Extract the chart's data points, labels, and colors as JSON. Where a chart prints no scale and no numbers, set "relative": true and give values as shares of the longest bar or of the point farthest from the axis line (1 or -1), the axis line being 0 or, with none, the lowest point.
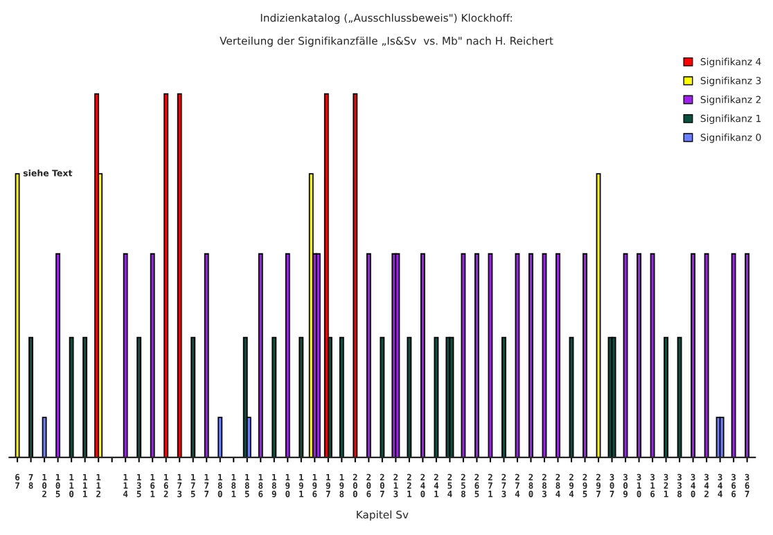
{
  "chart_data": {
    "type": "bar",
    "relative": true,
    "title": "Indizienkatalog („Ausschlussbeweis\") Klockhoff:",
    "subtitle": "Verteilung der Signifikanzfälle „Is&Sv  vs. Mb\" nach H. Reichert",
    "xlabel": "Kapitel Sv",
    "categories": [
      "67",
      "78",
      "102",
      "105",
      "110",
      "111",
      "112",
      null,
      "114",
      "135",
      "161",
      "162",
      "173",
      "175",
      "177",
      "180",
      "181",
      "185",
      "186",
      "189",
      "190",
      "191",
      "196",
      "197",
      "198",
      "200",
      "206",
      "207",
      "213",
      "221",
      "240",
      "241",
      "254",
      "258",
      "265",
      "271",
      "273",
      "274",
      "280",
      "283",
      "284",
      "294",
      "295",
      "297",
      "307",
      "309",
      "310",
      "316",
      "321",
      "338",
      "340",
      "342",
      "344",
      "366",
      "367"
    ],
    "series": [
      {
        "name": "Signifikanz 4",
        "color": "#ff0000",
        "values": [
          null,
          null,
          null,
          null,
          null,
          null,
          1,
          null,
          null,
          null,
          null,
          1,
          1,
          null,
          null,
          null,
          null,
          null,
          null,
          null,
          null,
          null,
          null,
          1,
          null,
          1,
          null,
          null,
          null,
          null,
          null,
          null,
          null,
          null,
          null,
          null,
          null,
          null,
          null,
          null,
          null,
          null,
          null,
          null,
          null,
          null,
          null,
          null,
          null,
          null,
          null,
          null,
          null,
          null,
          null
        ]
      },
      {
        "name": "Signifikanz 3",
        "color": "#ffff00",
        "values": [
          0.78,
          null,
          null,
          null,
          null,
          null,
          0.78,
          null,
          null,
          null,
          null,
          null,
          null,
          null,
          null,
          null,
          null,
          null,
          null,
          null,
          null,
          null,
          0.78,
          null,
          null,
          null,
          null,
          null,
          null,
          null,
          null,
          null,
          null,
          null,
          null,
          null,
          null,
          null,
          null,
          null,
          null,
          null,
          null,
          0.78,
          null,
          null,
          null,
          null,
          null,
          null,
          null,
          null,
          null,
          null,
          null
        ]
      },
      {
        "name": "Signifikanz 2",
        "color": "#a020f0",
        "values": [
          null,
          null,
          null,
          0.56,
          null,
          null,
          null,
          null,
          0.56,
          null,
          0.56,
          null,
          null,
          null,
          0.56,
          null,
          null,
          null,
          0.56,
          null,
          0.56,
          null,
          0.56,
          null,
          null,
          null,
          0.56,
          null,
          0.56,
          null,
          0.56,
          null,
          null,
          0.56,
          0.56,
          0.56,
          null,
          0.56,
          0.56,
          0.56,
          0.56,
          null,
          0.56,
          null,
          null,
          0.56,
          0.56,
          0.56,
          null,
          null,
          0.56,
          0.56,
          null,
          0.56,
          0.56
        ]
      },
      {
        "name": "Signifikanz 1",
        "color": "#0b4f40",
        "values": [
          null,
          0.33,
          null,
          null,
          0.33,
          0.33,
          null,
          null,
          null,
          0.33,
          null,
          null,
          null,
          0.33,
          null,
          null,
          null,
          0.33,
          null,
          0.33,
          null,
          0.33,
          null,
          0.33,
          0.33,
          null,
          null,
          0.33,
          null,
          0.33,
          null,
          0.33,
          0.33,
          null,
          null,
          null,
          0.33,
          null,
          null,
          null,
          null,
          0.33,
          null,
          null,
          0.33,
          null,
          null,
          null,
          0.33,
          0.33,
          null,
          null,
          null,
          null,
          null
        ]
      },
      {
        "name": "Signifikanz 0",
        "color": "#6b80ff",
        "values": [
          null,
          null,
          0.11,
          null,
          null,
          null,
          null,
          null,
          null,
          null,
          null,
          null,
          null,
          null,
          null,
          0.11,
          null,
          0.11,
          null,
          null,
          null,
          null,
          null,
          null,
          null,
          null,
          null,
          null,
          null,
          null,
          null,
          null,
          null,
          null,
          null,
          null,
          null,
          null,
          null,
          null,
          null,
          null,
          null,
          null,
          null,
          null,
          null,
          null,
          null,
          null,
          null,
          null,
          0.11,
          null,
          null
        ]
      },
      {
        "color": "#a020f0",
        "values": [
          null,
          null,
          null,
          null,
          null,
          null,
          null,
          null,
          null,
          null,
          null,
          null,
          null,
          null,
          null,
          null,
          null,
          null,
          null,
          null,
          null,
          null,
          0.56,
          null,
          null,
          null,
          null,
          null,
          0.56,
          null,
          null,
          null,
          null,
          null,
          null,
          null,
          null,
          null,
          null,
          null,
          null,
          null,
          null,
          null,
          null,
          null,
          null,
          null,
          null,
          null,
          null,
          null,
          null,
          null,
          null
        ]
      },
      {
        "color": "#0b4f40",
        "values": [
          null,
          null,
          null,
          null,
          null,
          null,
          null,
          null,
          null,
          null,
          null,
          null,
          null,
          null,
          null,
          null,
          null,
          null,
          null,
          null,
          null,
          null,
          null,
          null,
          null,
          null,
          null,
          null,
          null,
          null,
          null,
          null,
          0.33,
          null,
          null,
          null,
          null,
          null,
          null,
          null,
          null,
          null,
          null,
          null,
          0.33,
          null,
          null,
          null,
          null,
          null,
          null,
          null,
          null,
          null,
          null
        ]
      },
      {
        "color": "#6b80ff",
        "values": [
          null,
          null,
          null,
          null,
          null,
          null,
          null,
          null,
          null,
          null,
          null,
          null,
          null,
          null,
          null,
          null,
          null,
          null,
          null,
          null,
          null,
          null,
          null,
          null,
          null,
          null,
          null,
          null,
          null,
          null,
          null,
          null,
          null,
          null,
          null,
          null,
          null,
          null,
          null,
          null,
          null,
          null,
          null,
          null,
          null,
          null,
          null,
          null,
          null,
          null,
          null,
          null,
          0.11,
          null,
          null
        ]
      }
    ],
    "annotations": [
      {
        "text": "siehe Text",
        "x": "67",
        "y": 0.78
      }
    ],
    "legend": "top right",
    "grid": false
  }
}
